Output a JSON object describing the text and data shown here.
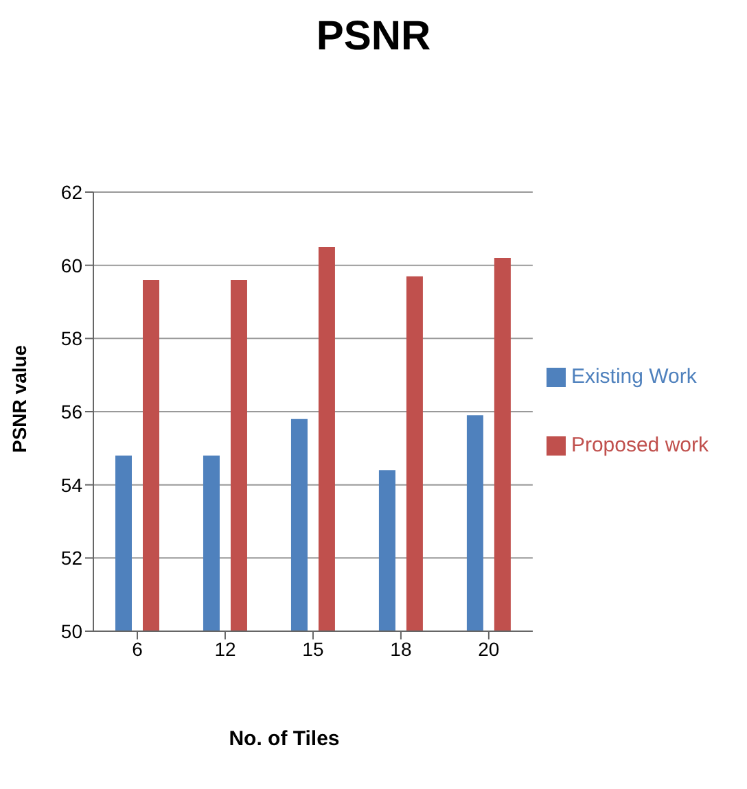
{
  "chart_data": {
    "type": "bar",
    "title": "PSNR",
    "xlabel": "No. of Tiles",
    "ylabel": "PSNR value",
    "categories": [
      "6",
      "12",
      "15",
      "18",
      "20"
    ],
    "series": [
      {
        "name": "Existing Work",
        "color": "#4f81bd",
        "values": [
          54.8,
          54.8,
          55.8,
          54.4,
          55.9
        ]
      },
      {
        "name": "Proposed work",
        "color": "#c0504d",
        "values": [
          59.6,
          59.6,
          60.5,
          59.7,
          60.2
        ]
      }
    ],
    "ylim": [
      50,
      62
    ],
    "yticks": [
      50,
      52,
      54,
      56,
      58,
      60,
      62
    ],
    "grid": "y",
    "legend": "right"
  }
}
